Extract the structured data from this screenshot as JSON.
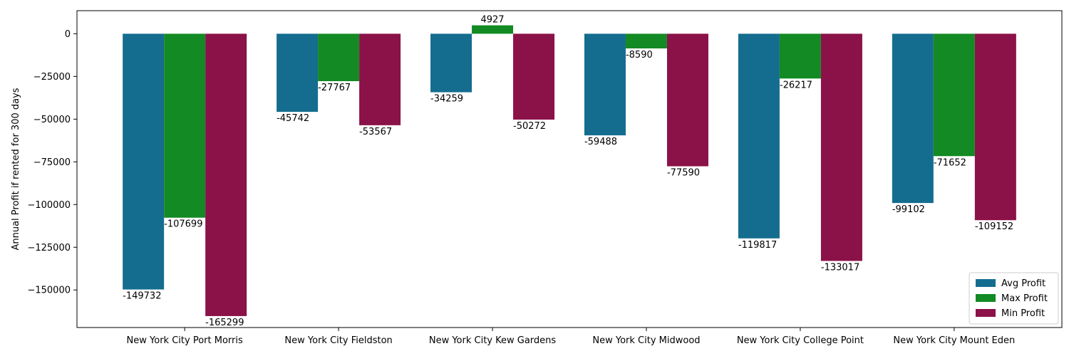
{
  "chart_data": {
    "type": "bar",
    "title": "",
    "xlabel": "",
    "ylabel": "Annual Profit if rented for 300 days",
    "ylim": [
      -172000,
      13500
    ],
    "yticks": [
      0,
      -25000,
      -50000,
      -75000,
      -100000,
      -125000,
      -150000
    ],
    "grid": false,
    "legend_position": "bottom-right",
    "categories": [
      "New York City Port Morris",
      "New York City Fieldston",
      "New York City Kew Gardens",
      "New York City Midwood",
      "New York City College Point",
      "New York City Mount Eden"
    ],
    "series": [
      {
        "name": "Avg Profit",
        "color": "#146d8f",
        "values": [
          -149732,
          -45742,
          -34259,
          -59488,
          -119817,
          -99102
        ]
      },
      {
        "name": "Max Profit",
        "color": "#138a23",
        "values": [
          -107699,
          -27767,
          4927,
          -8590,
          -26217,
          -71652
        ]
      },
      {
        "name": "Min Profit",
        "color": "#8b1149",
        "values": [
          -165299,
          -53567,
          -50272,
          -77590,
          -133017,
          -109152
        ]
      }
    ]
  }
}
